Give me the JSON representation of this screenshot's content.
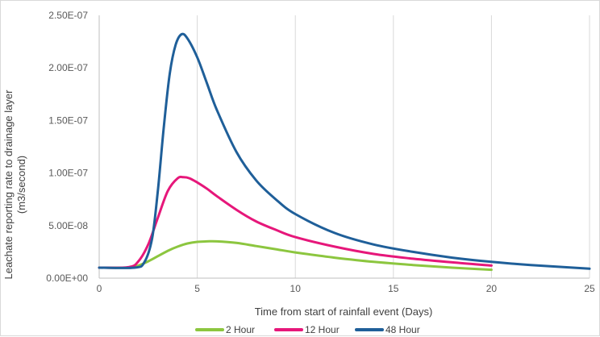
{
  "chart_data": {
    "type": "line",
    "title": "",
    "xlabel": "Time from start of rainfall event (Days)",
    "ylabel_line1": "Leachate reporting rate to drainage layer",
    "ylabel_line2": "(m3/second)",
    "xlim": [
      0,
      25
    ],
    "ylim": [
      0,
      2.5e-07
    ],
    "x_ticks": [
      0,
      5,
      10,
      15,
      20,
      25
    ],
    "x_tick_labels": [
      "0",
      "5",
      "10",
      "15",
      "20",
      "25"
    ],
    "y_ticks": [
      0,
      5e-08,
      1e-07,
      1.5e-07,
      2e-07,
      2.5e-07
    ],
    "y_tick_labels": [
      "0.00E+00",
      "5.00E-08",
      "1.00E-07",
      "1.50E-07",
      "2.00E-07",
      "2.50E-07"
    ],
    "grid": "vertical",
    "legend_position": "bottom",
    "series": [
      {
        "name": "2 Hour",
        "color": "#8cc63f",
        "points": [
          [
            0,
            1e-08
          ],
          [
            1.5,
            1e-08
          ],
          [
            2.0,
            1.2e-08
          ],
          [
            2.5,
            1.6e-08
          ],
          [
            3.0,
            2.1e-08
          ],
          [
            3.5,
            2.6e-08
          ],
          [
            4.0,
            3e-08
          ],
          [
            4.5,
            3.3e-08
          ],
          [
            5.0,
            3.45e-08
          ],
          [
            5.5,
            3.5e-08
          ],
          [
            6.0,
            3.5e-08
          ],
          [
            7.0,
            3.35e-08
          ],
          [
            8.0,
            3.05e-08
          ],
          [
            9.0,
            2.75e-08
          ],
          [
            10.0,
            2.45e-08
          ],
          [
            12.0,
            1.95e-08
          ],
          [
            14.0,
            1.55e-08
          ],
          [
            16.0,
            1.25e-08
          ],
          [
            18.0,
            1e-08
          ],
          [
            20.0,
            8e-09
          ]
        ]
      },
      {
        "name": "12 Hour",
        "color": "#e6177a",
        "points": [
          [
            0,
            1e-08
          ],
          [
            1.5,
            1.05e-08
          ],
          [
            2.0,
            1.6e-08
          ],
          [
            2.5,
            3.2e-08
          ],
          [
            3.0,
            5.8e-08
          ],
          [
            3.5,
            8.3e-08
          ],
          [
            4.0,
            9.5e-08
          ],
          [
            4.3,
            9.6e-08
          ],
          [
            4.6,
            9.5e-08
          ],
          [
            5.0,
            9.1e-08
          ],
          [
            5.5,
            8.5e-08
          ],
          [
            6.0,
            7.8e-08
          ],
          [
            7.0,
            6.5e-08
          ],
          [
            8.0,
            5.4e-08
          ],
          [
            9.0,
            4.6e-08
          ],
          [
            10.0,
            3.9e-08
          ],
          [
            12.0,
            3e-08
          ],
          [
            14.0,
            2.3e-08
          ],
          [
            16.0,
            1.85e-08
          ],
          [
            18.0,
            1.5e-08
          ],
          [
            20.0,
            1.2e-08
          ]
        ]
      },
      {
        "name": "48 Hour",
        "color": "#1f5f99",
        "points": [
          [
            0,
            1e-08
          ],
          [
            1.8,
            1e-08
          ],
          [
            2.3,
            1.5e-08
          ],
          [
            2.7,
            3.8e-08
          ],
          [
            3.0,
            8.5e-08
          ],
          [
            3.3,
            1.45e-07
          ],
          [
            3.6,
            1.95e-07
          ],
          [
            3.9,
            2.22e-07
          ],
          [
            4.2,
            2.32e-07
          ],
          [
            4.5,
            2.28e-07
          ],
          [
            5.0,
            2.1e-07
          ],
          [
            5.5,
            1.85e-07
          ],
          [
            6.0,
            1.6e-07
          ],
          [
            7.0,
            1.2e-07
          ],
          [
            8.0,
            9.3e-08
          ],
          [
            9.0,
            7.5e-08
          ],
          [
            10.0,
            6.1e-08
          ],
          [
            12.0,
            4.3e-08
          ],
          [
            14.0,
            3.2e-08
          ],
          [
            16.0,
            2.5e-08
          ],
          [
            18.0,
            1.95e-08
          ],
          [
            20.0,
            1.55e-08
          ],
          [
            22.0,
            1.25e-08
          ],
          [
            25.0,
            9e-09
          ]
        ]
      }
    ]
  }
}
